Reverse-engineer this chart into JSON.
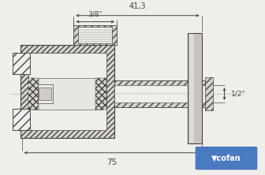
{
  "bg_color": "#f0eeea",
  "lc": "#444444",
  "dc": "#444444",
  "hatch_fc": "#d8d4cc",
  "pipe_fc": "#e8e4dc",
  "handle_fc": "#c8c4bc",
  "cofan_bg": "#4a7abf",
  "cofan_fg": "#ffffff",
  "dim_41_3": "41,3",
  "dim_3_8": "3/8\"",
  "dim_1_2": "1/2\"",
  "dim_75": "75"
}
